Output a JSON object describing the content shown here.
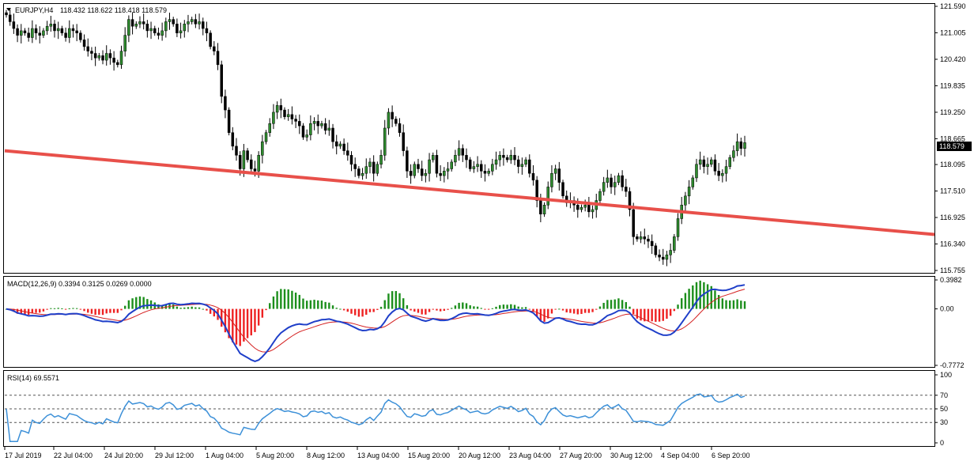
{
  "chart_data": [
    {
      "type": "candlestick",
      "title": "EURJPY,H4",
      "ohlc_text": "118.432 118.622 118.418 118.579",
      "ylim": [
        115.755,
        121.59
      ],
      "y_ticks": [
        "121.590",
        "121.005",
        "120.420",
        "119.835",
        "119.250",
        "118.665",
        "118.095",
        "117.510",
        "116.925",
        "116.340",
        "115.755"
      ],
      "current_price": "118.579",
      "trendline": {
        "color": "#e8504a",
        "y_start": 118.4,
        "y_end": 116.55
      },
      "closes": [
        121.4,
        121.25,
        121.1,
        120.95,
        121.05,
        121.0,
        120.9,
        121.1,
        121.0,
        120.95,
        121.05,
        121.15,
        121.2,
        121.05,
        121.1,
        121.0,
        120.9,
        121.1,
        121.05,
        121.0,
        120.85,
        120.7,
        120.6,
        120.55,
        120.45,
        120.5,
        120.4,
        120.55,
        120.45,
        120.35,
        120.3,
        120.6,
        120.95,
        121.3,
        121.15,
        121.2,
        121.25,
        121.2,
        121.05,
        121.1,
        121.0,
        120.95,
        121.05,
        121.25,
        121.3,
        121.2,
        121.0,
        121.05,
        121.2,
        121.25,
        121.3,
        121.2,
        121.25,
        121.1,
        121.0,
        120.7,
        120.6,
        120.3,
        119.6,
        119.3,
        118.8,
        118.5,
        118.3,
        118.0,
        118.4,
        118.2,
        118.0,
        117.95,
        118.3,
        118.6,
        118.8,
        119.0,
        119.25,
        119.4,
        119.3,
        119.15,
        119.2,
        119.1,
        119.05,
        118.95,
        118.7,
        118.75,
        119.0,
        119.05,
        118.95,
        119.0,
        118.85,
        118.9,
        118.6,
        118.5,
        118.55,
        118.4,
        118.3,
        118.1,
        118.0,
        117.85,
        117.9,
        118.05,
        118.15,
        117.9,
        118.1,
        118.3,
        118.9,
        119.25,
        119.1,
        119.0,
        118.8,
        118.4,
        117.95,
        117.85,
        118.1,
        118.0,
        117.85,
        117.9,
        118.2,
        118.3,
        117.9,
        117.85,
        117.95,
        118.0,
        118.15,
        118.3,
        118.45,
        118.3,
        118.2,
        118.0,
        118.05,
        118.1,
        117.95,
        117.9,
        117.95,
        118.1,
        118.2,
        118.3,
        118.25,
        118.2,
        118.3,
        118.2,
        118.05,
        118.1,
        118.2,
        117.9,
        117.75,
        117.3,
        117.0,
        117.2,
        117.6,
        117.9,
        118.0,
        117.7,
        117.4,
        117.25,
        117.3,
        117.2,
        117.1,
        117.15,
        117.2,
        117.05,
        117.1,
        117.3,
        117.5,
        117.7,
        117.8,
        117.6,
        117.7,
        117.85,
        117.6,
        117.5,
        117.1,
        116.5,
        116.45,
        116.5,
        116.45,
        116.4,
        116.3,
        116.1,
        116.05,
        116.0,
        116.1,
        116.2,
        116.5,
        116.9,
        117.2,
        117.4,
        117.6,
        117.8,
        118.1,
        118.2,
        118.05,
        118.1,
        118.2,
        117.95,
        117.85,
        117.9,
        118.05,
        118.25,
        118.4,
        118.6,
        118.45,
        118.579
      ],
      "x_labels": [
        "17 Jul 2019",
        "22 Jul 04:00",
        "24 Jul 20:00",
        "29 Jul 12:00",
        "1 Aug 04:00",
        "5 Aug 20:00",
        "8 Aug 12:00",
        "13 Aug 04:00",
        "15 Aug 20:00",
        "20 Aug 12:00",
        "23 Aug 04:00",
        "27 Aug 20:00",
        "30 Aug 12:00",
        "4 Sep 04:00",
        "6 Sep 20:00"
      ],
      "up_color": "#2e8b2e",
      "down_color": "#000000"
    },
    {
      "type": "line",
      "title": "MACD(12,26,9) 0.3394 0.3125 0.0269 0.0000",
      "y_ticks": [
        "0.3982",
        "0.00",
        "-0.7772"
      ],
      "ylim": [
        -0.7772,
        0.3982
      ],
      "series": [
        {
          "color": "#1f3fc9",
          "role": "macd"
        },
        {
          "color": "#d42020",
          "role": "signal"
        }
      ],
      "histogram_colors": {
        "positive": "#1c8f1c",
        "negative": "#ee2222"
      }
    },
    {
      "type": "line",
      "title": "RSI(14) 69.5571",
      "y_ticks": [
        "100",
        "70",
        "50",
        "30",
        "0"
      ],
      "ylim": [
        0,
        100
      ],
      "levels": [
        70,
        50,
        30
      ],
      "series": [
        {
          "color": "#3c90d8",
          "role": "rsi"
        }
      ]
    }
  ]
}
